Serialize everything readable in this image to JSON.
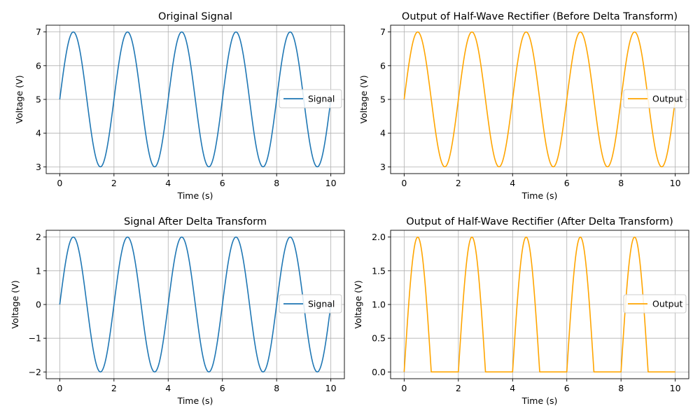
{
  "colors": {
    "signal": "#1f77b4",
    "output": "#ffa500",
    "grid": "#b0b0b0",
    "legend_border": "#cccccc"
  },
  "chart_data": [
    {
      "type": "line",
      "title": "Original Signal",
      "xlabel": "Time (s)",
      "ylabel": "Voltage (V)",
      "xlim": [
        -0.5,
        10.5
      ],
      "ylim": [
        2.8,
        7.2
      ],
      "xticks": [
        0,
        2,
        4,
        6,
        8,
        10
      ],
      "xtick_labels": [
        "0",
        "2",
        "4",
        "6",
        "8",
        "10"
      ],
      "yticks": [
        3,
        4,
        5,
        6,
        7
      ],
      "ytick_labels": [
        "3",
        "4",
        "5",
        "6",
        "7"
      ],
      "grid": true,
      "legend_position": "center-right",
      "series": [
        {
          "name": "Signal",
          "color": "#1f77b4",
          "function": "5 + 2*sin(pi*t)",
          "x_range": [
            0,
            10
          ]
        }
      ]
    },
    {
      "type": "line",
      "title": "Output of Half-Wave Rectifier (Before Delta Transform)",
      "xlabel": "Time (s)",
      "ylabel": "Voltage (V)",
      "xlim": [
        -0.5,
        10.5
      ],
      "ylim": [
        2.8,
        7.2
      ],
      "xticks": [
        0,
        2,
        4,
        6,
        8,
        10
      ],
      "xtick_labels": [
        "0",
        "2",
        "4",
        "6",
        "8",
        "10"
      ],
      "yticks": [
        3,
        4,
        5,
        6,
        7
      ],
      "ytick_labels": [
        "3",
        "4",
        "5",
        "6",
        "7"
      ],
      "grid": true,
      "legend_position": "center-right",
      "series": [
        {
          "name": "Output",
          "color": "#ffa500",
          "function": "max(0, 5 + 2*sin(pi*t))",
          "x_range": [
            0,
            10
          ]
        }
      ]
    },
    {
      "type": "line",
      "title": "Signal After Delta Transform",
      "xlabel": "Time (s)",
      "ylabel": "Voltage (V)",
      "xlim": [
        -0.5,
        10.5
      ],
      "ylim": [
        -2.2,
        2.2
      ],
      "xticks": [
        0,
        2,
        4,
        6,
        8,
        10
      ],
      "xtick_labels": [
        "0",
        "2",
        "4",
        "6",
        "8",
        "10"
      ],
      "yticks": [
        -2,
        -1,
        0,
        1,
        2
      ],
      "ytick_labels": [
        "−2",
        "−1",
        "0",
        "1",
        "2"
      ],
      "grid": true,
      "legend_position": "center-right",
      "series": [
        {
          "name": "Signal",
          "color": "#1f77b4",
          "function": "2*sin(pi*t)",
          "x_range": [
            0,
            10
          ]
        }
      ]
    },
    {
      "type": "line",
      "title": "Output of Half-Wave Rectifier (After Delta Transform)",
      "xlabel": "Time (s)",
      "ylabel": "Voltage (V)",
      "xlim": [
        -0.5,
        10.5
      ],
      "ylim": [
        -0.1,
        2.1
      ],
      "xticks": [
        0,
        2,
        4,
        6,
        8,
        10
      ],
      "xtick_labels": [
        "0",
        "2",
        "4",
        "6",
        "8",
        "10"
      ],
      "yticks": [
        0,
        0.5,
        1,
        1.5,
        2
      ],
      "ytick_labels": [
        "0.0",
        "0.5",
        "1.0",
        "1.5",
        "2.0"
      ],
      "grid": true,
      "legend_position": "center-right",
      "series": [
        {
          "name": "Output",
          "color": "#ffa500",
          "function": "max(0, 2*sin(pi*t))",
          "x_range": [
            0,
            10
          ]
        }
      ]
    }
  ]
}
